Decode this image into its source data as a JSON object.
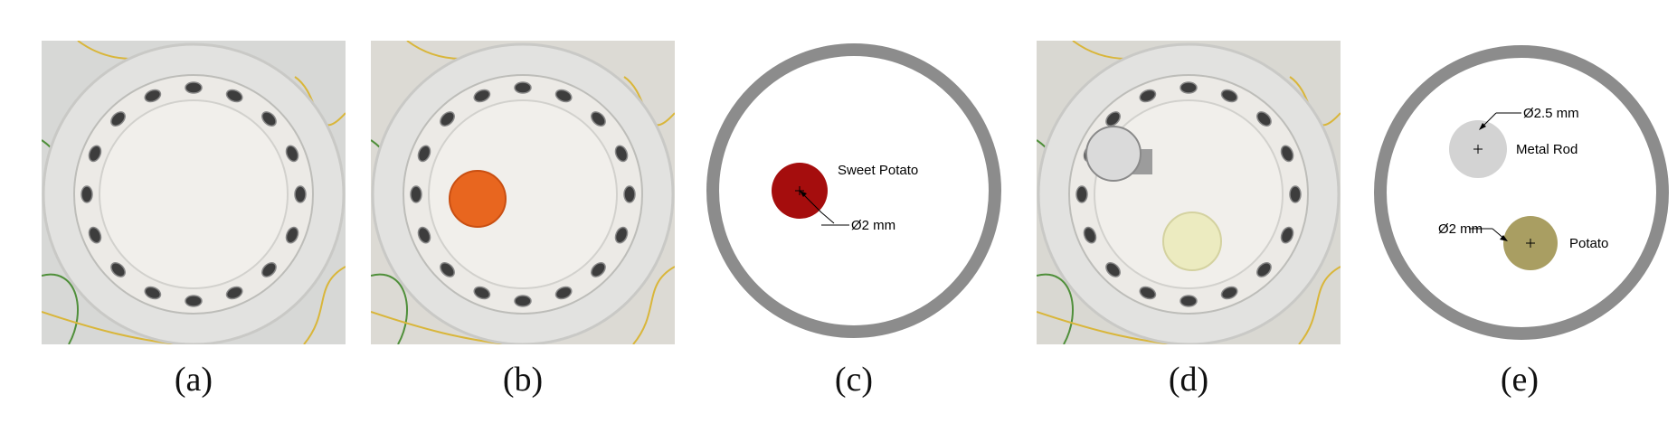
{
  "panels": [
    {
      "id": "a",
      "caption": "(a)",
      "kind": "photo",
      "content": "empty tank"
    },
    {
      "id": "b",
      "caption": "(b)",
      "kind": "photo",
      "content": "tank with sweet potato slice"
    },
    {
      "id": "c",
      "caption": "(c)",
      "kind": "schematic",
      "labels": {
        "object": "Sweet Potato",
        "diameter": "Ø2 mm"
      }
    },
    {
      "id": "d",
      "caption": "(d)",
      "kind": "photo",
      "content": "tank with metal rod and potato"
    },
    {
      "id": "e",
      "caption": "(e)",
      "kind": "schematic",
      "labels": {
        "rod": "Metal Rod",
        "rod_diameter": "Ø2.5 mm",
        "potato": "Potato",
        "potato_diameter": "Ø2 mm"
      }
    }
  ],
  "colors": {
    "ring": "#8c8c8c",
    "sweet_potato": "#a50d0d",
    "metal_rod": "#d3d3d3",
    "potato": "#a99e62",
    "carrot_slice": "#e8661f",
    "electrode": "#3d3d3d",
    "wire_green": "#4f8f3a",
    "wire_yellow": "#d9b63a"
  }
}
